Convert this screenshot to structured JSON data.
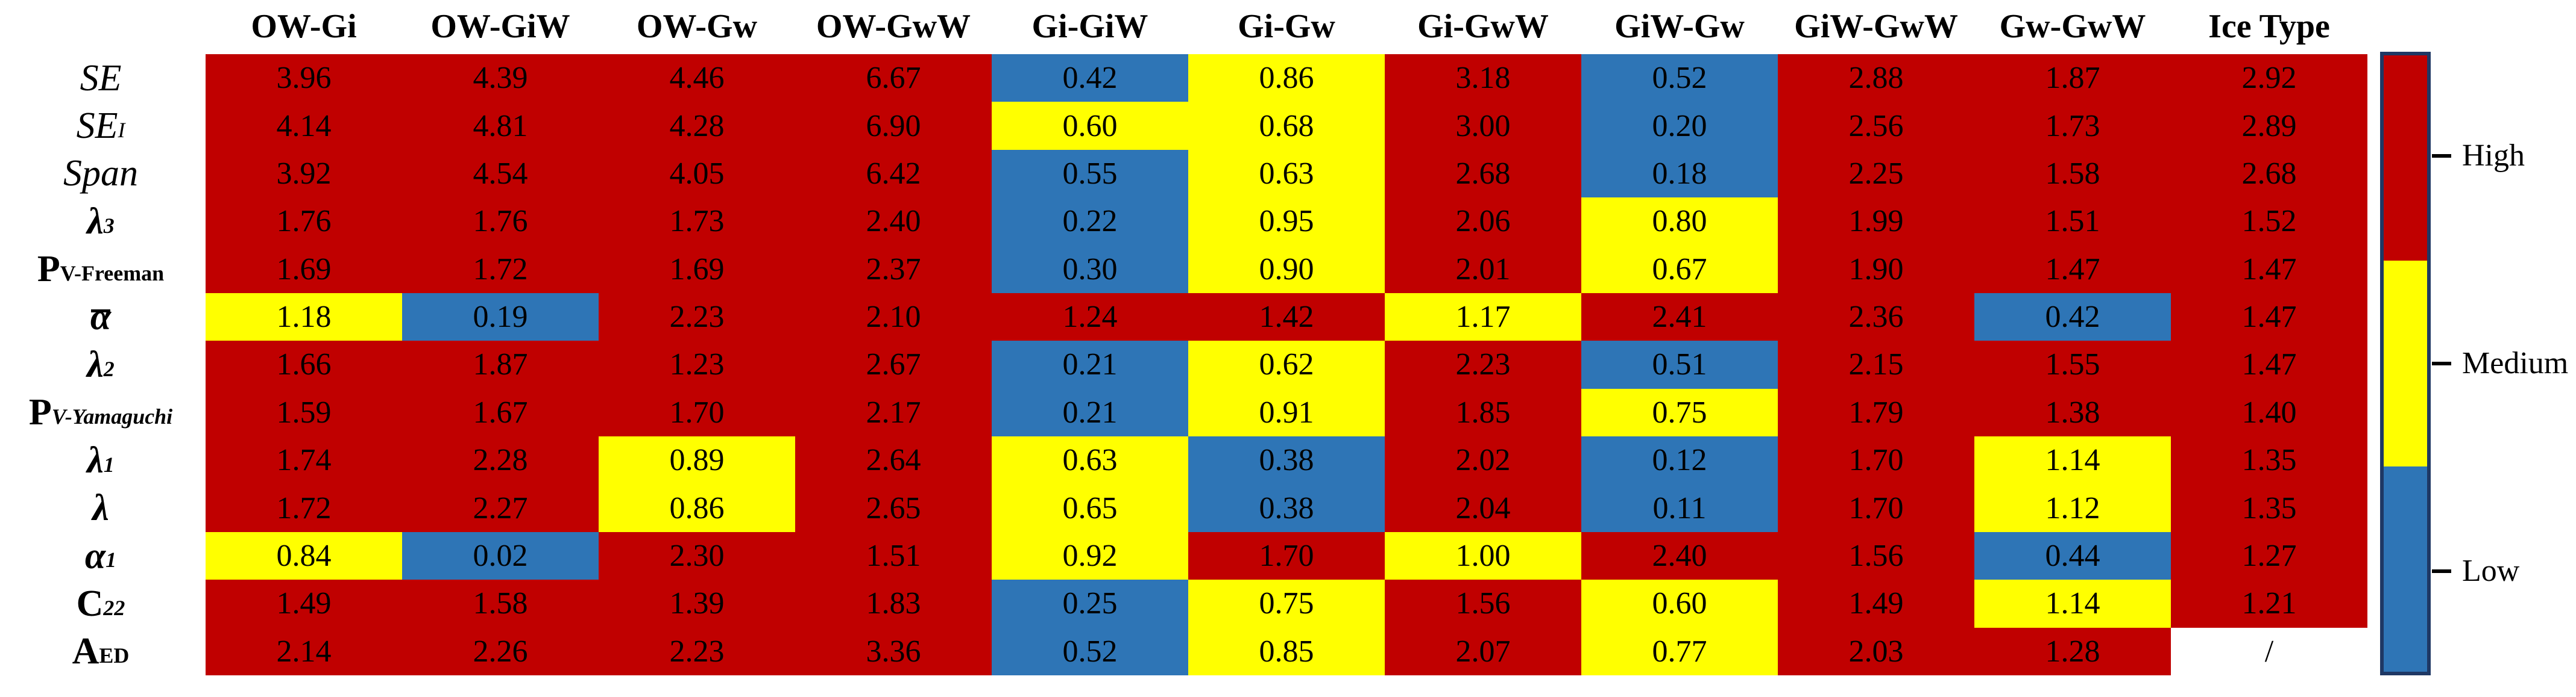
{
  "chart_data": {
    "type": "heatmap",
    "columns": [
      "OW-Gi",
      "OW-GiW",
      "OW-Gw",
      "OW-GwW",
      "Gi-GiW",
      "Gi-Gw",
      "Gi-GwW",
      "GiW-Gw",
      "GiW-GwW",
      "Gw-GwW",
      "Ice Type"
    ],
    "rows": [
      {
        "label": "SE",
        "values": [
          "3.96",
          "4.39",
          "4.46",
          "6.67",
          "0.42",
          "0.86",
          "3.18",
          "0.52",
          "2.88",
          "1.87",
          "2.92"
        ],
        "levels": [
          "H",
          "H",
          "H",
          "H",
          "L",
          "M",
          "H",
          "L",
          "H",
          "H",
          "H"
        ]
      },
      {
        "label": "SE_I",
        "values": [
          "4.14",
          "4.81",
          "4.28",
          "6.90",
          "0.60",
          "0.68",
          "3.00",
          "0.20",
          "2.56",
          "1.73",
          "2.89"
        ],
        "levels": [
          "H",
          "H",
          "H",
          "H",
          "M",
          "M",
          "H",
          "L",
          "H",
          "H",
          "H"
        ]
      },
      {
        "label": "Span",
        "values": [
          "3.92",
          "4.54",
          "4.05",
          "6.42",
          "0.55",
          "0.63",
          "2.68",
          "0.18",
          "2.25",
          "1.58",
          "2.68"
        ],
        "levels": [
          "H",
          "H",
          "H",
          "H",
          "L",
          "M",
          "H",
          "L",
          "H",
          "H",
          "H"
        ]
      },
      {
        "label": "λ_3",
        "values": [
          "1.76",
          "1.76",
          "1.73",
          "2.40",
          "0.22",
          "0.95",
          "2.06",
          "0.80",
          "1.99",
          "1.51",
          "1.52"
        ],
        "levels": [
          "H",
          "H",
          "H",
          "H",
          "L",
          "M",
          "H",
          "M",
          "H",
          "H",
          "H"
        ]
      },
      {
        "label": "P_V-Freeman",
        "values": [
          "1.69",
          "1.72",
          "1.69",
          "2.37",
          "0.30",
          "0.90",
          "2.01",
          "0.67",
          "1.90",
          "1.47",
          "1.47"
        ],
        "levels": [
          "H",
          "H",
          "H",
          "H",
          "L",
          "M",
          "H",
          "M",
          "H",
          "H",
          "H"
        ]
      },
      {
        "label": "ᾱ",
        "values": [
          "1.18",
          "0.19",
          "2.23",
          "2.10",
          "1.24",
          "1.42",
          "1.17",
          "2.41",
          "2.36",
          "0.42",
          "1.47"
        ],
        "levels": [
          "M",
          "L",
          "H",
          "H",
          "H",
          "H",
          "M",
          "H",
          "H",
          "L",
          "H"
        ]
      },
      {
        "label": "λ_2",
        "values": [
          "1.66",
          "1.87",
          "1.23",
          "2.67",
          "0.21",
          "0.62",
          "2.23",
          "0.51",
          "2.15",
          "1.55",
          "1.47"
        ],
        "levels": [
          "H",
          "H",
          "H",
          "H",
          "L",
          "M",
          "H",
          "L",
          "H",
          "H",
          "H"
        ]
      },
      {
        "label": "P_V-Yamaguchi",
        "values": [
          "1.59",
          "1.67",
          "1.70",
          "2.17",
          "0.21",
          "0.91",
          "1.85",
          "0.75",
          "1.79",
          "1.38",
          "1.40"
        ],
        "levels": [
          "H",
          "H",
          "H",
          "H",
          "L",
          "M",
          "H",
          "M",
          "H",
          "H",
          "H"
        ]
      },
      {
        "label": "λ_1",
        "values": [
          "1.74",
          "2.28",
          "0.89",
          "2.64",
          "0.63",
          "0.38",
          "2.02",
          "0.12",
          "1.70",
          "1.14",
          "1.35"
        ],
        "levels": [
          "H",
          "H",
          "M",
          "H",
          "M",
          "L",
          "H",
          "L",
          "H",
          "M",
          "H"
        ]
      },
      {
        "label": "λ",
        "values": [
          "1.72",
          "2.27",
          "0.86",
          "2.65",
          "0.65",
          "0.38",
          "2.04",
          "0.11",
          "1.70",
          "1.12",
          "1.35"
        ],
        "levels": [
          "H",
          "H",
          "M",
          "H",
          "M",
          "L",
          "H",
          "L",
          "H",
          "M",
          "H"
        ]
      },
      {
        "label": "α_1",
        "values": [
          "0.84",
          "0.02",
          "2.30",
          "1.51",
          "0.92",
          "1.70",
          "1.00",
          "2.40",
          "1.56",
          "0.44",
          "1.27"
        ],
        "levels": [
          "M",
          "L",
          "H",
          "H",
          "M",
          "H",
          "M",
          "H",
          "H",
          "L",
          "H"
        ]
      },
      {
        "label": "C_22",
        "values": [
          "1.49",
          "1.58",
          "1.39",
          "1.83",
          "0.25",
          "0.75",
          "1.56",
          "0.60",
          "1.49",
          "1.14",
          "1.21"
        ],
        "levels": [
          "H",
          "H",
          "H",
          "H",
          "L",
          "M",
          "H",
          "M",
          "H",
          "M",
          "H"
        ]
      },
      {
        "label": "A_ED",
        "values": [
          "2.14",
          "2.26",
          "2.23",
          "3.36",
          "0.52",
          "0.85",
          "2.07",
          "0.77",
          "2.03",
          "1.28",
          "/"
        ],
        "levels": [
          "H",
          "H",
          "H",
          "H",
          "L",
          "M",
          "H",
          "M",
          "H",
          "H",
          "N"
        ]
      }
    ],
    "legend": {
      "position": "right",
      "entries": [
        "High",
        "Medium",
        "Low"
      ]
    }
  },
  "row_labels": [
    {
      "main": "SE",
      "sub": ""
    },
    {
      "main": "SE",
      "sub": "I"
    },
    {
      "main": "Span",
      "sub": ""
    },
    {
      "main": "λ",
      "sub": "3"
    },
    {
      "main": "P",
      "sub": "V-Freeman"
    },
    {
      "main": "α",
      "sub": ""
    },
    {
      "main": "λ",
      "sub": "2"
    },
    {
      "main": "P",
      "sub": "V-Yamaguchi"
    },
    {
      "main": "λ",
      "sub": "1"
    },
    {
      "main": "λ",
      "sub": ""
    },
    {
      "main": "α",
      "sub": "1"
    },
    {
      "main": "C",
      "sub": "22"
    },
    {
      "main": "A",
      "sub": "ED"
    }
  ],
  "colors": {
    "high": "#C00000",
    "medium": "#FFFF00",
    "low": "#2E75B6",
    "none": "#FFFFFF",
    "colorbar_border": "#1F3864"
  }
}
